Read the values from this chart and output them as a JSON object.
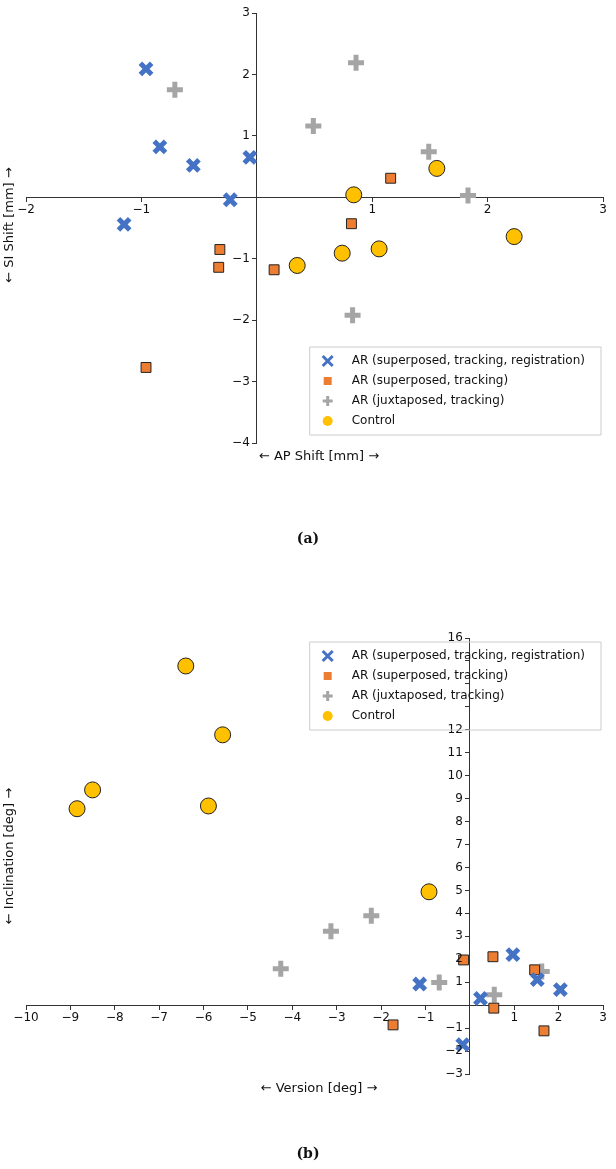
{
  "chart_data": [
    {
      "type": "scatter",
      "xlabel": "← AP Shift [mm] →",
      "ylabel": "← SI Shift [mm] →",
      "annotations": [
        "(a)"
      ],
      "xlim": [
        -2,
        3
      ],
      "ylim": [
        -4,
        3
      ],
      "xticks": [
        {
          "value": -2,
          "label": "−2"
        },
        {
          "value": -1,
          "label": "−1"
        },
        {
          "value": 0,
          "label": null
        },
        1,
        2,
        3
      ],
      "yticks": [
        {
          "value": -4,
          "label": "−4"
        },
        {
          "value": -3,
          "label": "−3"
        },
        {
          "value": -2,
          "label": "−2"
        },
        {
          "value": -1,
          "label": "−1"
        },
        {
          "value": 0,
          "label": null
        },
        1,
        2,
        3
      ],
      "grid": false,
      "legend": "bottom right",
      "series": [
        {
          "name": "AR (superposed, tracking, registration)",
          "color": "#4472c4",
          "marker": "cross",
          "x": [
            -0.96,
            -0.84,
            -0.55,
            -0.06,
            -0.23,
            -1.15
          ],
          "values": [
            2.09,
            0.82,
            0.52,
            0.65,
            -0.04,
            -0.44
          ]
        },
        {
          "name": "AR (superposed, tracking)",
          "color": "#ed7d31",
          "marker": "square",
          "x": [
            1.16,
            0.82,
            -0.32,
            -0.33,
            0.15,
            -0.96
          ],
          "values": [
            0.31,
            -0.43,
            -0.85,
            -1.14,
            -1.18,
            -2.77
          ]
        },
        {
          "name": "AR (juxtaposed, tracking)",
          "color": "#a5a5a5",
          "marker": "plus",
          "x": [
            0.86,
            -0.71,
            0.49,
            1.49,
            1.83,
            0.83
          ],
          "values": [
            2.19,
            1.75,
            1.16,
            0.74,
            0.03,
            -1.92
          ]
        },
        {
          "name": "Control",
          "color": "#ffc000",
          "marker": "circle",
          "x": [
            1.56,
            0.84,
            2.23,
            1.06,
            0.74,
            0.35
          ],
          "values": [
            0.47,
            0.04,
            -0.64,
            -0.84,
            -0.91,
            -1.11
          ]
        }
      ]
    },
    {
      "type": "scatter",
      "xlabel": "← Version [deg] →",
      "ylabel": "← Inclination [deg] →",
      "annotations": [
        "(b)"
      ],
      "xlim": [
        -10,
        3
      ],
      "ylim": [
        -3,
        16
      ],
      "xticks": [
        {
          "value": -10,
          "label": "−10"
        },
        {
          "value": -9,
          "label": "−9"
        },
        {
          "value": -8,
          "label": "−8"
        },
        {
          "value": -7,
          "label": "−7"
        },
        {
          "value": -6,
          "label": "−6"
        },
        {
          "value": -5,
          "label": "−5"
        },
        {
          "value": -4,
          "label": "−4"
        },
        {
          "value": -3,
          "label": "−3"
        },
        {
          "value": -2,
          "label": "−2"
        },
        {
          "value": -1,
          "label": "−1"
        },
        {
          "value": 0,
          "label": null
        },
        1,
        2,
        3
      ],
      "yticks": [
        {
          "value": -3,
          "label": "−3"
        },
        {
          "value": -2,
          "label": "−2"
        },
        {
          "value": -1,
          "label": "−1"
        },
        {
          "value": 0,
          "label": null
        },
        1,
        2,
        3,
        4,
        5,
        6,
        7,
        8,
        9,
        10,
        11,
        12,
        {
          "value": 13,
          "label": null
        },
        {
          "value": 14,
          "label": null
        },
        {
          "value": 15,
          "label": null
        },
        16
      ],
      "grid": false,
      "legend": "top right",
      "series": [
        {
          "name": "AR (superposed, tracking, registration)",
          "color": "#4472c4",
          "marker": "cross",
          "x": [
            -1.13,
            0.24,
            0.97,
            1.52,
            2.04,
            -0.16
          ],
          "values": [
            0.92,
            0.29,
            2.2,
            1.11,
            0.68,
            -1.72
          ]
        },
        {
          "name": "AR (superposed, tracking)",
          "color": "#ed7d31",
          "marker": "square",
          "x": [
            -0.14,
            0.52,
            1.46,
            0.54,
            1.67,
            -1.73
          ],
          "values": [
            1.97,
            2.11,
            1.54,
            -0.13,
            -1.12,
            -0.86
          ]
        },
        {
          "name": "AR (juxtaposed, tracking)",
          "color": "#a5a5a5",
          "marker": "plus",
          "x": [
            -3.13,
            -2.22,
            -0.69,
            0.55,
            1.62,
            -4.26
          ],
          "values": [
            3.22,
            3.9,
            0.99,
            0.45,
            1.47,
            1.59
          ]
        },
        {
          "name": "Control",
          "color": "#ffc000",
          "marker": "circle",
          "x": [
            -0.92,
            -6.4,
            -5.57,
            -8.5,
            -8.85,
            -5.89
          ],
          "values": [
            4.94,
            14.78,
            11.78,
            9.38,
            8.56,
            8.68
          ]
        }
      ]
    }
  ]
}
